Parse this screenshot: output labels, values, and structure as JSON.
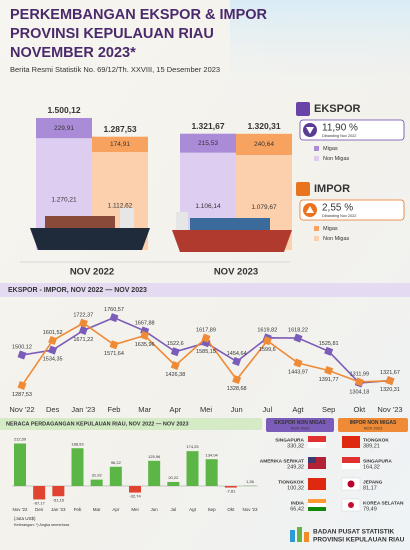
{
  "header": {
    "title_lines": [
      "PERKEMBANGAN EKSPOR & IMPOR",
      "PROVINSI KEPULAUAN RIAU",
      "NOVEMBER 2023*"
    ],
    "subtitle": "Berita Resmi Statistik No. 69/12/Th. XXVIII, 15 Desember 2023"
  },
  "chart_data": [
    {
      "type": "stacked-bar",
      "categories": [
        "NOV 2022",
        "NOV 2023"
      ],
      "groups": [
        {
          "name": "EKSPOR",
          "change": "11,90 %",
          "change_note": "Dibanding Nov 2022",
          "label_color": "#6a43a8",
          "totals": [
            {
              "value": 1500.12,
              "label": "1.500,12"
            },
            {
              "value": 1321.67,
              "label": "1.321,67"
            }
          ],
          "series": [
            {
              "name": "Migas",
              "color": "#a98bd8",
              "values": [
                229.91,
                215.53
              ],
              "value_labels": [
                "229,91",
                "215,53"
              ]
            },
            {
              "name": "Non Migas",
              "color": "#ddcdf1",
              "values": [
                1270.21,
                1106.14
              ],
              "value_labels": [
                "1.270,21",
                "1.106,14"
              ]
            }
          ]
        },
        {
          "name": "IMPOR",
          "change": "2,55 %",
          "change_note": "Dibanding Nov 2022",
          "label_color": "#e9731f",
          "totals": [
            {
              "value": 1287.53,
              "label": "1.287,53"
            },
            {
              "value": 1320.31,
              "label": "1.320,31"
            }
          ],
          "series": [
            {
              "name": "Migas",
              "color": "#f7a25f",
              "values": [
                174.91,
                240.64
              ],
              "value_labels": [
                "174,91",
                "240,64"
              ]
            },
            {
              "name": "Non Migas",
              "color": "#fcd0ad",
              "values": [
                1112.62,
                1079.67
              ],
              "value_labels": [
                "1.112,62",
                "1.079,67"
              ]
            }
          ]
        }
      ]
    },
    {
      "type": "line",
      "title": "EKSPOR - IMPOR, NOV 2022 — NOV 2023",
      "categories": [
        "Nov '22",
        "Des",
        "Jan '23",
        "Feb",
        "Mar",
        "Apr",
        "Mei",
        "Jun",
        "Jul",
        "Agt",
        "Sep",
        "Okt",
        "Nov '23"
      ],
      "ylim": [
        1200,
        1800
      ],
      "series": [
        {
          "color": "#7b5cb8",
          "values": [
            1500.12,
            1534.35,
            1671.22,
            1760.57,
            1667.88,
            1522.6,
            1585.15,
            1454.64,
            1619.82,
            1618.22,
            1525.81,
            1304.18,
            1321.67
          ],
          "value_labels": [
            "1500,12",
            "1534,35",
            "1671,22",
            "1760,57",
            "1667,88",
            "1522,6",
            "1585,15",
            "1454,64",
            "1619,82",
            "1618,22",
            "1525,81",
            "1304,18",
            "1321,67"
          ]
        },
        {
          "color": "#ef8a36",
          "values": [
            1287.53,
            1601.52,
            1722.37,
            1571.64,
            1635.96,
            1426.38,
            1617.89,
            1328.68,
            1599.6,
            1443.97,
            1391.77,
            1311.99,
            1320.31
          ],
          "value_labels": [
            "1287,53",
            "1601,52",
            "1722,37",
            "1571,64",
            "1635,96",
            "1426,38",
            "1617,89",
            "1328,68",
            "1599,6",
            "1443,97",
            "1391,77",
            "1311,99",
            "1320,31"
          ]
        }
      ]
    },
    {
      "type": "bar",
      "title": "NERACA PERDAGANGAN KEPULAUAN RIAU, NOV 2022 — NOV 2023",
      "categories": [
        "Nov '22",
        "Des",
        "Jan '23",
        "Feb",
        "Mar",
        "Apr",
        "Mei",
        "Jun",
        "Jul",
        "Agt",
        "Sep",
        "Okt",
        "Nov '23"
      ],
      "values": [
        212.59,
        -67.17,
        -51.15,
        188.93,
        31.92,
        96.22,
        -32.74,
        125.96,
        20.22,
        174.25,
        134.04,
        -7.81,
        1.36
      ],
      "value_labels": [
        "212,59",
        "-67,17",
        "-51,15",
        "188,93",
        "31,92",
        "96,22",
        "-32,74",
        "125,96",
        "20,22",
        "174,25",
        "134,04",
        "-7,81",
        "1,36"
      ],
      "ylim": [
        -80,
        230
      ],
      "color": "#5cb646",
      "negative_color": "#e0432f",
      "unit": "(Juta US$)",
      "note": "Keterangan: *) Angka sementara"
    }
  ],
  "partners": [
    {
      "title": "EKSPOR NON MIGAS",
      "subtitle": "NOV 2023",
      "rows": [
        {
          "country": "SINGAPURA",
          "value": "330,32"
        },
        {
          "country": "AMERIKA SERIKAT",
          "value": "249,32"
        },
        {
          "country": "TIONGKOK",
          "value": "100,32"
        },
        {
          "country": "INDIA",
          "value": "66,42"
        }
      ]
    },
    {
      "title": "IMPOR NON MIGAS",
      "subtitle": "NOV 2023",
      "rows": [
        {
          "country": "TIONGKOK",
          "value": "389,21"
        },
        {
          "country": "SINGAPURA",
          "value": "164,32"
        },
        {
          "country": "JEPANG",
          "value": "81,17"
        },
        {
          "country": "KOREA SELATAN",
          "value": "79,49"
        }
      ]
    }
  ],
  "footer": {
    "lines": [
      "BADAN PUSAT STATISTIK",
      "PROVINSI KEPULAUAN RIAU"
    ]
  }
}
